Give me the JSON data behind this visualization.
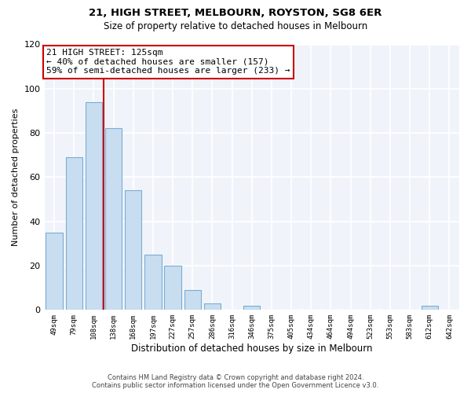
{
  "title": "21, HIGH STREET, MELBOURN, ROYSTON, SG8 6ER",
  "subtitle": "Size of property relative to detached houses in Melbourn",
  "xlabel": "Distribution of detached houses by size in Melbourn",
  "ylabel": "Number of detached properties",
  "bar_labels": [
    "49sqm",
    "79sqm",
    "108sqm",
    "138sqm",
    "168sqm",
    "197sqm",
    "227sqm",
    "257sqm",
    "286sqm",
    "316sqm",
    "346sqm",
    "375sqm",
    "405sqm",
    "434sqm",
    "464sqm",
    "494sqm",
    "523sqm",
    "553sqm",
    "583sqm",
    "612sqm",
    "642sqm"
  ],
  "bar_values": [
    35,
    69,
    94,
    82,
    54,
    25,
    20,
    9,
    3,
    0,
    2,
    0,
    0,
    0,
    0,
    0,
    0,
    0,
    0,
    2,
    0
  ],
  "bar_color": "#c8ddf0",
  "bar_edge_color": "#7aadd4",
  "ylim": [
    0,
    120
  ],
  "yticks": [
    0,
    20,
    40,
    60,
    80,
    100,
    120
  ],
  "property_line_color": "#cc0000",
  "property_line_x": 2.5,
  "annotation_title": "21 HIGH STREET: 125sqm",
  "annotation_line1": "← 40% of detached houses are smaller (157)",
  "annotation_line2": "59% of semi-detached houses are larger (233) →",
  "annotation_box_color": "#cc0000",
  "footer_line1": "Contains HM Land Registry data © Crown copyright and database right 2024.",
  "footer_line2": "Contains public sector information licensed under the Open Government Licence v3.0.",
  "bg_color": "#ffffff",
  "plot_bg_color": "#f0f4fa"
}
